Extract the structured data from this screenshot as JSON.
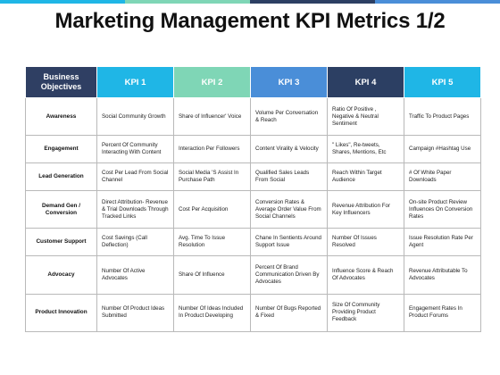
{
  "colors": {
    "header_dark": "#2f3f63",
    "kpi_1": "#1fb6e6",
    "kpi_2": "#7fd6b6",
    "kpi_3": "#4a8ed8",
    "kpi_4": "#2c3f63",
    "kpi_5": "#1fb6e6"
  },
  "title": "Marketing Management KPI Metrics 1/2",
  "table": {
    "headers": [
      "Business Objectives",
      "KPI 1",
      "KPI 2",
      "KPI 3",
      "KPI 4",
      "KPI 5"
    ],
    "rows": [
      {
        "objective": "Awareness",
        "cells": [
          "Social Community Growth",
          "Share of Influencer' Voice",
          "Volume Per Conversation & Reach",
          "Ratio Of Positive , Negative & Neutral Sentiment",
          "Traffic To Product Pages"
        ]
      },
      {
        "objective": "Engagement",
        "cells": [
          "Percent Of Community Interacting With Content",
          "Interaction Per Followers",
          "Content Virality & Velocity",
          "\" Likes\", Re-tweets, Shares, Mentions, Etc",
          "Campaign #Hashtag Use"
        ]
      },
      {
        "objective": "Lead Generation",
        "cells": [
          "Cost Per Lead From Social Channel",
          "Social Media 'S Assist In Purchase Path",
          "Qualified Sales Leads From Social",
          "Reach Within Target Audience",
          "# Of White Paper Downloads"
        ]
      },
      {
        "objective": "Demand Gen / Conversion",
        "cells": [
          "Direct Attribution- Revenue & Trial Downloads Through Tracked Links",
          "Cost Per Acquisition",
          "Conversion Rates & Average Order Value From Social Channels",
          "Revenue Attribution For Key Influencers",
          "On-site Product Review Influences On Conversion Rates"
        ]
      },
      {
        "objective": "Customer Support",
        "cells": [
          "Cost Savings (Call Deflection)",
          "Avg. Time To Issue Resolution",
          "Chane In Sentients Around Support Issue",
          "Number Of Issues Resolved",
          "Issue Resolution Rate Per Agent"
        ]
      },
      {
        "objective": "Advocacy",
        "cells": [
          "Number Of Active Advocates",
          "Share Of Influence",
          "Percent Of Brand Communication Driven By Advocates",
          "Influence Score & Reach Of Advocates",
          "Revenue Attributable To Advocates"
        ]
      },
      {
        "objective": "Product Innovation",
        "cells": [
          "Number Of Product Ideas Submitted",
          "Number Of Ideas Included In Product Developing",
          "Number Of Bugs Reported & Fixed",
          "Size Of Community Providing Product Feedback",
          "Engagement Rates In Product Forums"
        ]
      }
    ]
  }
}
